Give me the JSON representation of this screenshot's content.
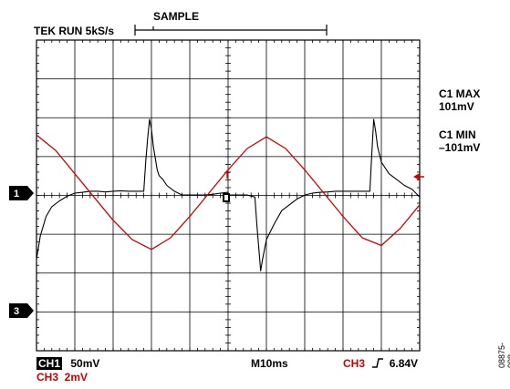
{
  "header": {
    "run_status": "TEK RUN 5kS/s",
    "acquire_mode": "SAMPLE"
  },
  "readouts": {
    "c1_max_label": "C1 MAX",
    "c1_max_value": "101mV",
    "c1_min_label": "C1 MIN",
    "c1_min_value": "–101mV"
  },
  "markers": {
    "ch1": "1",
    "ch3": "3"
  },
  "footer": {
    "ch1_label": "CH1",
    "ch1_scale": "50mV",
    "ch3_scale_line": "CH3  2mV",
    "timebase": "M10ms",
    "trigger_source": "CH3",
    "trigger_level": "6.84V"
  },
  "figure_id": "08875-008",
  "colors": {
    "ch1_trace": "#000000",
    "ch3_trace": "#cc0000",
    "grid": "#000000"
  },
  "icons": {
    "trigger_slope": "rising-edge-icon",
    "trigger_arrow": "left-arrow-icon"
  },
  "chart_data": {
    "type": "line",
    "x_divisions": 10,
    "y_divisions": 8,
    "series": [
      {
        "name": "CH1",
        "x_div": [
          0.0,
          0.1,
          0.25,
          0.4,
          0.6,
          0.8,
          1.0,
          1.2,
          1.4,
          1.6,
          1.8,
          2.0,
          2.2,
          2.4,
          2.6,
          2.8,
          2.85,
          2.9,
          2.95,
          3.0,
          3.05,
          3.1,
          3.15,
          3.2,
          3.3,
          3.4,
          3.6,
          3.8,
          4.0,
          4.2,
          4.4,
          4.6,
          4.8,
          5.0,
          5.02,
          5.2,
          5.5,
          5.7,
          5.75,
          5.8,
          5.85,
          5.9,
          6.0,
          6.2,
          6.4,
          6.6,
          6.8,
          7.0,
          7.2,
          7.4,
          7.6,
          7.8,
          8.0,
          8.2,
          8.4,
          8.6,
          8.7,
          8.75,
          8.8,
          8.85,
          8.9,
          9.0,
          9.2,
          9.4,
          9.6,
          9.8,
          10.0
        ],
        "y_div": [
          -1.7,
          -1.1,
          -0.6,
          -0.35,
          -0.2,
          -0.08,
          0.0,
          0.02,
          0.05,
          0.05,
          0.03,
          0.05,
          0.06,
          0.05,
          0.05,
          0.05,
          0.8,
          1.4,
          1.9,
          1.65,
          1.2,
          0.9,
          0.6,
          0.45,
          0.35,
          0.2,
          0.05,
          -0.05,
          -0.05,
          -0.05,
          -0.05,
          -0.03,
          0.0,
          0.02,
          -0.05,
          -0.05,
          -0.05,
          -0.1,
          -0.8,
          -1.4,
          -2.0,
          -1.7,
          -1.2,
          -0.8,
          -0.45,
          -0.3,
          -0.15,
          -0.05,
          0.0,
          0.02,
          0.03,
          0.05,
          0.05,
          0.05,
          0.05,
          0.05,
          0.05,
          1.0,
          1.9,
          1.6,
          1.2,
          0.8,
          0.5,
          0.35,
          0.2,
          0.1,
          -0.1
        ]
      },
      {
        "name": "CH3",
        "x_div": [
          0.0,
          0.5,
          1.0,
          1.5,
          2.0,
          2.5,
          3.0,
          3.5,
          4.0,
          4.5,
          5.0,
          5.5,
          6.0,
          6.5,
          7.0,
          7.5,
          8.0,
          8.5,
          9.0,
          9.5,
          10.0
        ],
        "y_div": [
          1.5,
          1.1,
          0.5,
          -0.1,
          -0.7,
          -1.2,
          -1.45,
          -1.15,
          -0.6,
          0.0,
          0.6,
          1.15,
          1.45,
          1.15,
          0.6,
          0.0,
          -0.6,
          -1.15,
          -1.35,
          -0.9,
          -0.3
        ]
      }
    ]
  }
}
